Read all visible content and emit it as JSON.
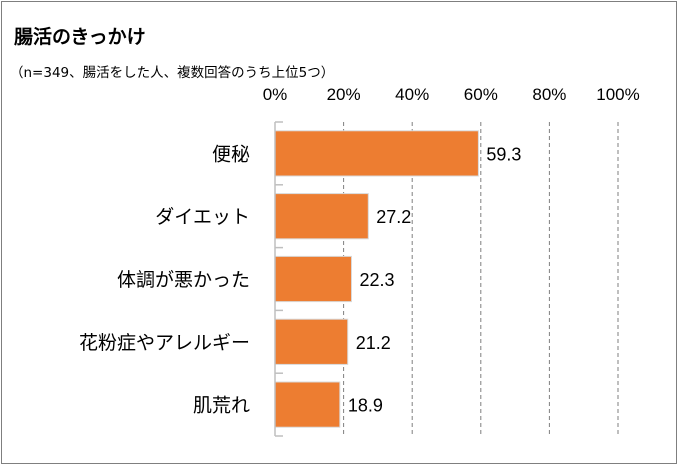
{
  "title": "腸活のきっかけ",
  "subtitle": "（n=349、腸活をした人、複数回答のうち上位5つ）",
  "colors": {
    "bar": "#ed7d31",
    "bar_edge": "#d9d9d9",
    "grid": "#7f7f7f",
    "axis": "#bfbfbf"
  },
  "chart_data": {
    "type": "bar",
    "orientation": "horizontal",
    "title": "腸活のきっかけ",
    "subtitle": "（n=349、腸活をした人、複数回答のうち上位5つ）",
    "categories": [
      "便秘",
      "ダイエット",
      "体調が悪かった",
      "花粉症やアレルギー",
      "肌荒れ"
    ],
    "values": [
      59.3,
      27.2,
      22.3,
      21.2,
      18.9
    ],
    "value_labels": [
      "59.3",
      "27.2",
      "22.3",
      "21.2",
      "18.9"
    ],
    "xlim": [
      0,
      100
    ],
    "x_ticks": [
      0,
      20,
      40,
      60,
      80,
      100
    ],
    "x_tick_labels": [
      "0%",
      "20%",
      "40%",
      "60%",
      "80%",
      "100%"
    ],
    "x_axis_position": "top",
    "grid": true,
    "legend": false
  }
}
